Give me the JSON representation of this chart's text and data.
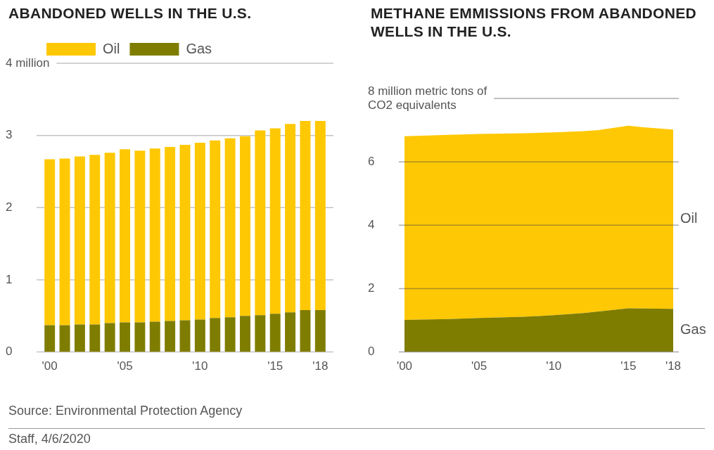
{
  "chart_data": [
    {
      "type": "bar",
      "title": "ABANDONED WELLS IN THE U.S.",
      "stacked": true,
      "legend": "top left",
      "grid": "y",
      "categories": [
        "'00",
        null,
        null,
        null,
        null,
        "'05",
        null,
        null,
        null,
        null,
        "'10",
        null,
        null,
        null,
        null,
        "'15",
        null,
        null,
        "'18"
      ],
      "series": [
        {
          "name": "Gas",
          "color": "#7f7d00",
          "values": [
            0.37,
            0.37,
            0.38,
            0.38,
            0.4,
            0.41,
            0.41,
            0.42,
            0.43,
            0.44,
            0.45,
            0.47,
            0.48,
            0.5,
            0.51,
            0.53,
            0.55,
            0.58,
            0.58
          ]
        },
        {
          "name": "Oil",
          "color": "#ffc804",
          "values": [
            2.3,
            2.31,
            2.33,
            2.35,
            2.36,
            2.4,
            2.38,
            2.4,
            2.41,
            2.43,
            2.45,
            2.46,
            2.48,
            2.49,
            2.56,
            2.57,
            2.61,
            2.62,
            2.62
          ]
        }
      ],
      "ylim": [
        0,
        4
      ],
      "yticks": [
        0,
        1,
        2,
        3,
        {
          "value": 4,
          "label": "4 million"
        }
      ],
      "annotations": [
        "Source: Environmental Protection Agency",
        "Staff, 4/6/2020"
      ]
    },
    {
      "type": "area",
      "title": "METHANE EMMISSIONS FROM ABANDONED WELLS IN THE U.S.",
      "stacked": true,
      "legend": false,
      "grid": "y",
      "x": [
        2000,
        2003,
        2005,
        2008,
        2010,
        2012,
        2013,
        2015,
        2016,
        2018
      ],
      "series": [
        {
          "name": "Gas",
          "color": "#7f7d00",
          "values": [
            1.01,
            1.04,
            1.07,
            1.11,
            1.16,
            1.23,
            1.28,
            1.38,
            1.37,
            1.36
          ]
        },
        {
          "name": "Oil",
          "color": "#ffc804",
          "values": [
            5.8,
            5.81,
            5.81,
            5.79,
            5.77,
            5.74,
            5.72,
            5.76,
            5.72,
            5.66
          ]
        }
      ],
      "xlim": [
        2000,
        2018
      ],
      "xticks": [
        {
          "value": 2000,
          "label": "'00"
        },
        {
          "value": 2005,
          "label": "'05"
        },
        {
          "value": 2010,
          "label": "'10"
        },
        {
          "value": 2015,
          "label": "'15"
        },
        {
          "value": 2018,
          "label": "'18"
        }
      ],
      "ylim": [
        0,
        8
      ],
      "yticks": [
        0,
        2,
        4,
        6,
        {
          "value": 8,
          "label": "8 million metric tons of CO2 equivalents"
        }
      ]
    }
  ]
}
